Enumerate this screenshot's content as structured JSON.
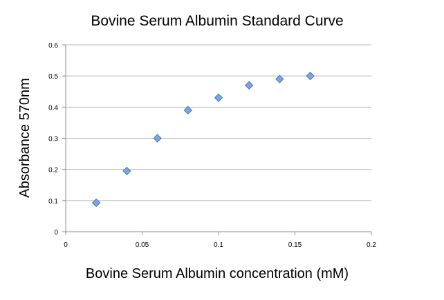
{
  "chart_data": {
    "type": "scatter",
    "title": "Bovine Serum Albumin Standard Curve",
    "xlabel": "Bovine Serum Albumin concentration (mM)",
    "ylabel": "Absorbance 570nm",
    "xlim": [
      0,
      0.2
    ],
    "ylim": [
      0,
      0.6
    ],
    "x_ticks": [
      0,
      0.05,
      0.1,
      0.15,
      0.2
    ],
    "x_tick_labels": [
      "0",
      "0.05",
      "0.1",
      "0.15",
      "0.2"
    ],
    "y_ticks": [
      0,
      0.1,
      0.2,
      0.3,
      0.4,
      0.5,
      0.6
    ],
    "y_tick_labels": [
      "0",
      "0.1",
      "0.2",
      "0.3",
      "0.4",
      "0.5",
      "0.6"
    ],
    "grid": "horizontal",
    "legend": "none",
    "marker": "diamond",
    "colors": {
      "marker_fill": "#7aa6df",
      "marker_stroke": "#4a77b8",
      "grid": "#b8b8b8",
      "axis": "#8c8c8c"
    },
    "series": [
      {
        "x": [
          0.02,
          0.04,
          0.06,
          0.08,
          0.1,
          0.12,
          0.14,
          0.16
        ],
        "y": [
          0.093,
          0.195,
          0.3,
          0.39,
          0.43,
          0.47,
          0.49,
          0.5
        ]
      }
    ]
  }
}
